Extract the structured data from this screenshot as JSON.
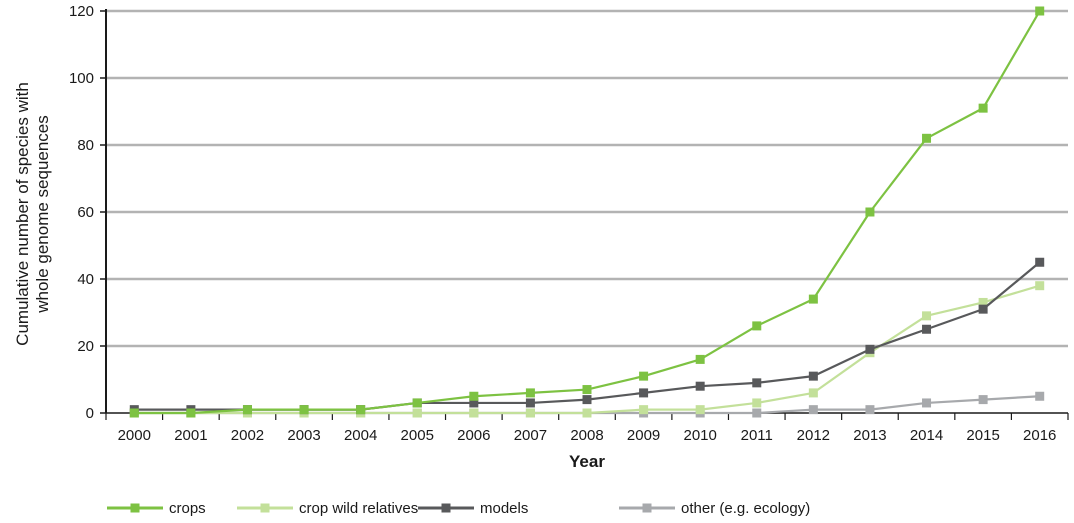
{
  "chart_data": {
    "type": "line",
    "title": "",
    "xlabel": "Year",
    "ylabel": "Cumulative number of species with whole genome sequences",
    "ylabel_lines": [
      "Cumulative number of species with",
      "whole genome sequences"
    ],
    "categories": [
      "2000",
      "2001",
      "2002",
      "2003",
      "2004",
      "2005",
      "2006",
      "2007",
      "2008",
      "2009",
      "2010",
      "2011",
      "2012",
      "2013",
      "2014",
      "2015",
      "2016"
    ],
    "ylim": [
      0,
      120
    ],
    "yticks": [
      0,
      20,
      40,
      60,
      80,
      100,
      120
    ],
    "grid": "horizontal",
    "legend_position": "bottom",
    "series": [
      {
        "name": "crops",
        "color": "#7dc242",
        "values": [
          0,
          0,
          1,
          1,
          1,
          3,
          5,
          6,
          7,
          11,
          16,
          26,
          34,
          60,
          82,
          91,
          120
        ]
      },
      {
        "name": "crop wild relatives",
        "color": "#c3e09a",
        "values": [
          0,
          0,
          0,
          0,
          0,
          0,
          0,
          0,
          0,
          1,
          1,
          3,
          6,
          18,
          29,
          33,
          38
        ]
      },
      {
        "name": "models",
        "color": "#58595b",
        "values": [
          1,
          1,
          1,
          1,
          1,
          3,
          3,
          3,
          4,
          6,
          8,
          9,
          11,
          19,
          25,
          31,
          45
        ]
      },
      {
        "name": "other (e.g. ecology)",
        "color": "#a7a9ac",
        "values": [
          0,
          0,
          0,
          0,
          0,
          0,
          0,
          0,
          0,
          0,
          0,
          0,
          1,
          1,
          3,
          4,
          5
        ]
      }
    ]
  }
}
